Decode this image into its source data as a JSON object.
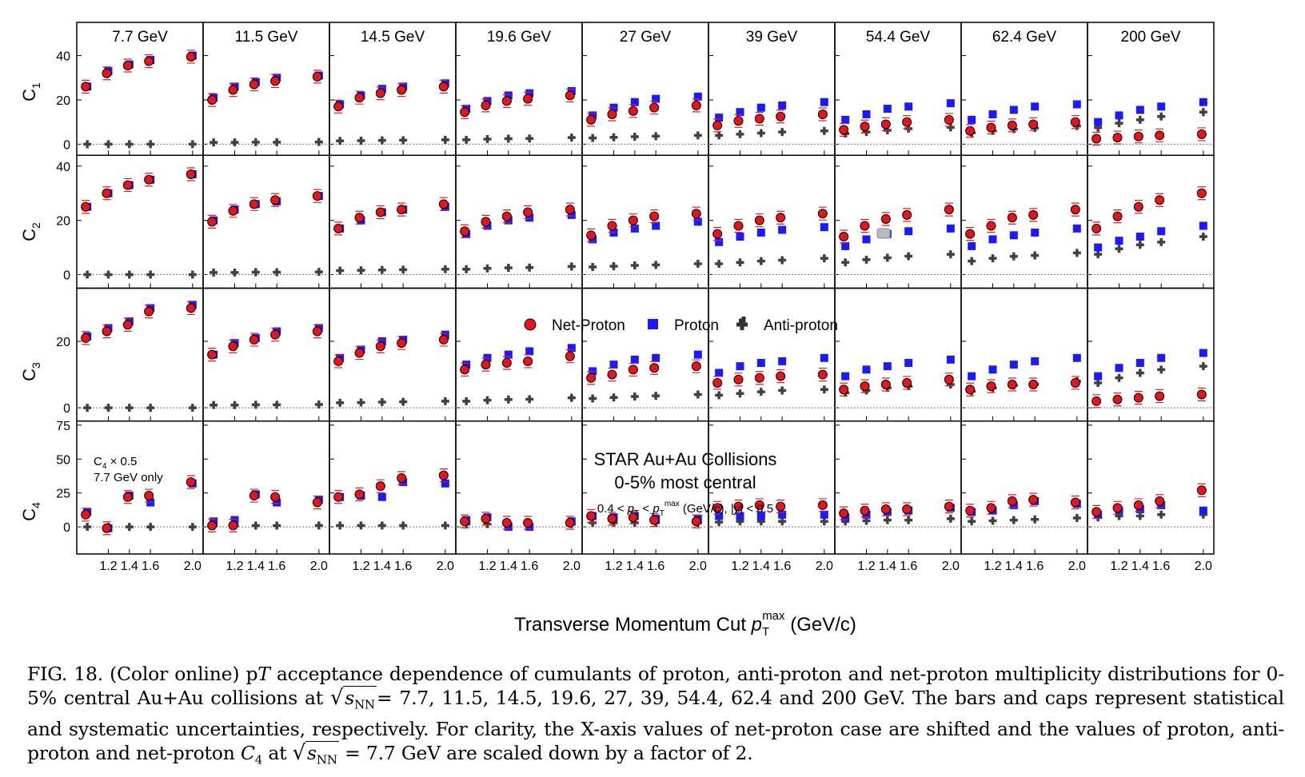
{
  "energies": [
    "7.7 GeV",
    "11.5 GeV",
    "14.5 GeV",
    "19.6 GeV",
    "27 GeV",
    "39 GeV",
    "54.4 GeV",
    "62.4 GeV",
    "200 GeV"
  ],
  "row_labels": [
    "C1",
    "C2",
    "C3",
    "C4"
  ],
  "xlabel": "Transverse Momentum Cut",
  "xlabel_sym": "p",
  "xlabel_sub": "T",
  "xlabel_sup": "max",
  "xlabel_unit": "(GeV/c)",
  "legend": {
    "net": "Net-Proton",
    "proton": "Proton",
    "anti": "Anti-proton"
  },
  "annot": {
    "title1": "STAR Au+Au Collisions",
    "title2": "0-5% most central",
    "cuts": "0.4 < pT < pTmax (GeV/c), |y| < 0.5",
    "scale1": "C4 × 0.5",
    "scale2": "7.7 GeV only"
  },
  "caption": {
    "label": "FIG. 18.",
    "part1": "(Color online) pT acceptance dependence of cumulants of proton, anti-proton and net-proton multiplicity distributions for 0-5% central Au+Au collisions at",
    "sqrt": "sNN",
    "part2": "= 7.7, 11.5, 14.5, 19.6, 27, 39, 54.4, 62.4 and 200 GeV. The bars and caps represent statistical and systematic uncertainties, respectively. For clarity, the X-axis values of net-proton case are shifted and the values of proton, anti-proton and net-proton C4 at",
    "part3": "= 7.7 GeV are scaled down by a factor of 2."
  },
  "colors": {
    "net": "#e8141c",
    "proton": "#1a1aff",
    "anti": "#404040"
  },
  "chart_data": {
    "type": "scatter",
    "x": [
      1.0,
      1.2,
      1.4,
      1.6,
      2.0
    ],
    "xticks": [
      1.2,
      1.4,
      1.6,
      2.0
    ],
    "xlim": [
      0.9,
      2.1
    ],
    "rows": [
      {
        "name": "C1",
        "ylim": [
          -5,
          55
        ],
        "yticks": [
          0,
          20,
          40
        ]
      },
      {
        "name": "C2",
        "ylim": [
          -5,
          44
        ],
        "yticks": [
          0,
          20,
          40
        ]
      },
      {
        "name": "C3",
        "ylim": [
          -4,
          36
        ],
        "yticks": [
          0,
          20
        ]
      },
      {
        "name": "C4",
        "ylim": [
          -20,
          78
        ],
        "yticks": [
          0,
          25,
          50,
          75
        ]
      }
    ],
    "series": {
      "net": [
        [
          [
            26,
            32,
            35.5,
            37.5,
            39.5
          ],
          [
            20,
            24.5,
            27,
            28.5,
            30.5
          ],
          [
            17,
            21,
            23,
            24.5,
            26
          ],
          [
            14.5,
            17.5,
            19.5,
            20.5,
            22
          ],
          [
            11,
            13.5,
            15,
            16.5,
            17.5
          ],
          [
            8.5,
            10.5,
            11.5,
            12.5,
            13.5
          ],
          [
            6.5,
            8,
            9,
            10,
            11
          ],
          [
            6,
            7.5,
            8.5,
            9,
            10
          ],
          [
            2.5,
            3,
            3.5,
            4,
            4.5
          ]
        ],
        [
          [
            25,
            30,
            33,
            35,
            37
          ],
          [
            19.5,
            23.5,
            26,
            27.5,
            29
          ],
          [
            17,
            21,
            23,
            24,
            26
          ],
          [
            16,
            19.5,
            21.5,
            23,
            24
          ],
          [
            14.5,
            18,
            20,
            21.5,
            22.5
          ],
          [
            15,
            18,
            20,
            21,
            22.5
          ],
          [
            14,
            18,
            20.5,
            22,
            24
          ],
          [
            15,
            18,
            21,
            22,
            24
          ],
          [
            17,
            21.5,
            25,
            27.5,
            30
          ]
        ],
        [
          [
            21,
            23,
            25,
            29,
            30
          ],
          [
            16,
            18.5,
            20.5,
            22,
            23
          ],
          [
            14,
            16.5,
            18.5,
            19.5,
            20.5
          ],
          [
            11.5,
            13,
            13.5,
            14,
            15.5
          ],
          [
            9,
            10,
            11.5,
            12,
            12.5
          ],
          [
            7.5,
            8.5,
            9,
            9.5,
            10
          ],
          [
            5.5,
            6.5,
            7,
            7.5,
            8.5
          ],
          [
            5.5,
            6.5,
            7,
            7,
            7.5
          ],
          [
            2,
            2.5,
            3,
            3.5,
            4
          ]
        ],
        [
          [
            9,
            -1,
            22,
            23,
            33
          ],
          [
            1,
            1,
            23,
            22,
            18
          ],
          [
            22,
            24,
            30,
            36,
            38
          ],
          [
            4,
            6,
            3,
            3,
            3
          ],
          [
            8,
            6,
            7,
            5,
            4
          ],
          [
            14,
            15,
            16,
            15,
            16
          ],
          [
            10,
            12,
            13,
            13,
            15
          ],
          [
            12,
            14,
            19,
            20,
            18
          ],
          [
            11,
            14,
            16,
            19,
            27
          ]
        ]
      ],
      "proton": [
        [
          [
            26,
            33,
            36,
            38,
            40
          ],
          [
            21,
            26,
            28,
            30,
            31
          ],
          [
            18,
            22,
            25,
            26,
            27.5
          ],
          [
            16,
            19.5,
            22,
            23,
            24
          ],
          [
            13,
            16.5,
            19,
            20.5,
            21.5
          ],
          [
            12,
            14.5,
            16.5,
            17.5,
            19
          ],
          [
            11,
            13.5,
            16,
            17,
            18.5
          ],
          [
            11,
            13.5,
            15.5,
            17,
            18
          ],
          [
            10,
            13,
            15.5,
            17,
            19
          ]
        ],
        [
          [
            25,
            30,
            33,
            35,
            37
          ],
          [
            20,
            24,
            26,
            27,
            29
          ],
          [
            17,
            20,
            23,
            24,
            25
          ],
          [
            15,
            18,
            20,
            21,
            22
          ],
          [
            13,
            15.5,
            17,
            18,
            19.5
          ],
          [
            12,
            14,
            15.5,
            16.5,
            17.5
          ],
          [
            10.5,
            13,
            15,
            16,
            17
          ],
          [
            10.5,
            13,
            14.5,
            15.5,
            17
          ],
          [
            10,
            12.5,
            14,
            16,
            18
          ]
        ],
        [
          [
            21.5,
            24,
            26,
            30,
            31
          ],
          [
            16,
            19.5,
            21,
            23,
            24
          ],
          [
            15,
            17.5,
            20,
            20.5,
            22
          ],
          [
            13,
            15,
            16,
            17,
            18
          ],
          [
            11,
            13,
            14.5,
            15,
            16
          ],
          [
            10.5,
            12.5,
            13.5,
            14,
            15
          ],
          [
            9.5,
            11.5,
            12.5,
            13.5,
            14.5
          ],
          [
            9.5,
            11.5,
            13,
            14,
            15
          ],
          [
            9.5,
            12,
            13.5,
            15,
            16.5
          ]
        ],
        [
          [
            11,
            -1,
            23,
            18,
            32
          ],
          [
            4,
            5,
            24,
            18,
            20
          ],
          [
            22,
            23,
            22,
            33,
            32
          ],
          [
            5,
            7,
            0,
            0,
            4
          ],
          [
            8,
            7,
            8,
            6,
            6
          ],
          [
            8,
            8,
            8,
            9,
            9
          ],
          [
            7,
            9,
            11,
            12,
            14
          ],
          [
            11,
            12,
            16,
            19,
            17
          ],
          [
            9,
            12,
            13,
            16,
            12
          ]
        ]
      ],
      "anti": [
        [
          [
            0,
            0,
            0,
            0,
            0
          ],
          [
            0.8,
            0.8,
            0.9,
            0.9,
            1
          ],
          [
            1.5,
            1.6,
            1.7,
            1.8,
            2
          ],
          [
            2,
            2.3,
            2.5,
            2.6,
            3
          ],
          [
            2.8,
            3.1,
            3.4,
            3.6,
            4
          ],
          [
            4,
            4.5,
            5,
            5.5,
            6
          ],
          [
            4.8,
            5.5,
            6.3,
            7,
            7.6
          ],
          [
            5.2,
            6,
            6.8,
            7.3,
            8.2
          ],
          [
            7.5,
            9.5,
            11,
            12.5,
            14.5
          ]
        ],
        [
          [
            0,
            0,
            0,
            0,
            0
          ],
          [
            0.8,
            0.8,
            0.9,
            0.9,
            1
          ],
          [
            1.5,
            1.6,
            1.7,
            1.8,
            2
          ],
          [
            2,
            2.3,
            2.5,
            2.6,
            3
          ],
          [
            2.8,
            3.1,
            3.4,
            3.6,
            4
          ],
          [
            4,
            4.5,
            5,
            5.3,
            6
          ],
          [
            4.5,
            5.5,
            6.2,
            6.8,
            7.5
          ],
          [
            5,
            6,
            6.7,
            7.1,
            8
          ],
          [
            7.5,
            9.5,
            11,
            12,
            14
          ]
        ],
        [
          [
            0,
            0,
            0,
            0,
            0
          ],
          [
            0.8,
            0.8,
            0.9,
            0.9,
            1
          ],
          [
            1.5,
            1.6,
            1.7,
            1.8,
            2
          ],
          [
            2,
            2.3,
            2.5,
            2.6,
            3
          ],
          [
            2.8,
            3.1,
            3.4,
            3.6,
            4
          ],
          [
            3.8,
            4.3,
            4.8,
            5.2,
            5.5
          ],
          [
            4.5,
            5.2,
            6,
            6.5,
            7
          ],
          [
            5,
            6,
            6.7,
            7.1,
            8
          ],
          [
            7.5,
            9,
            10.5,
            11.5,
            12.5
          ]
        ],
        [
          [
            0,
            0,
            0,
            0,
            0
          ],
          [
            0.8,
            0.8,
            0.9,
            0.9,
            1
          ],
          [
            1,
            1,
            1,
            1,
            1
          ],
          [
            2,
            2,
            2,
            2,
            2
          ],
          [
            3,
            3,
            3,
            3,
            3
          ],
          [
            3.5,
            4,
            4,
            4,
            4
          ],
          [
            4,
            4.5,
            5,
            5,
            6
          ],
          [
            4,
            4.5,
            5,
            5.5,
            6.5
          ],
          [
            7,
            8,
            8,
            9,
            9
          ]
        ]
      ]
    }
  }
}
